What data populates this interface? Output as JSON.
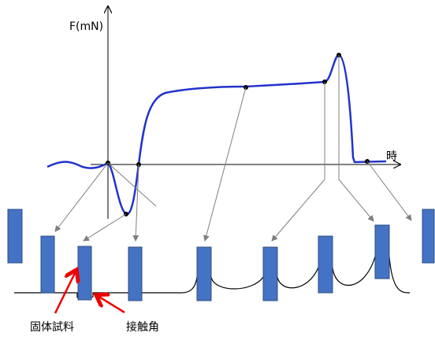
{
  "axes": {
    "y_label": "F(mN)",
    "x_label": "時"
  },
  "annotations": {
    "solid_sample": "固体試料",
    "contact_angle": "接触角"
  }
}
